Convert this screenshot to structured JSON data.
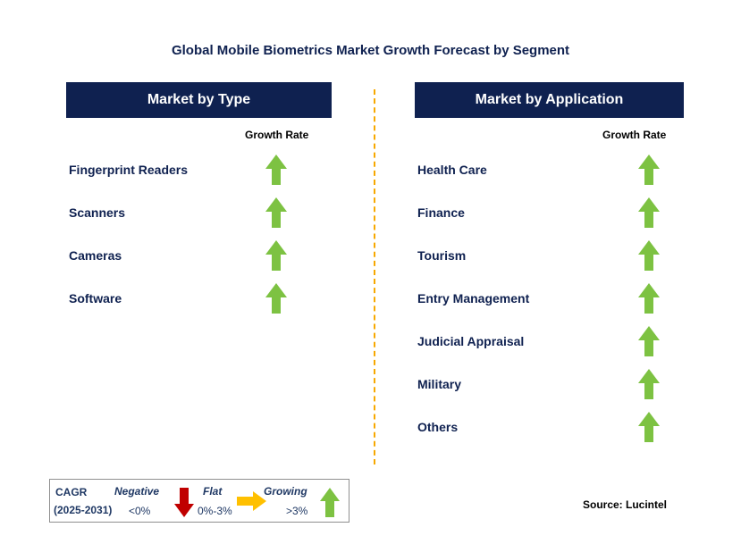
{
  "title": "Global Mobile Biometrics Market Growth Forecast by Segment",
  "left": {
    "header": "Market by Type",
    "growth_label": "Growth Rate",
    "items": [
      {
        "label": "Fingerprint Readers",
        "trend": "growing"
      },
      {
        "label": "Scanners",
        "trend": "growing"
      },
      {
        "label": "Cameras",
        "trend": "growing"
      },
      {
        "label": "Software",
        "trend": "growing"
      }
    ]
  },
  "right": {
    "header": "Market by Application",
    "growth_label": "Growth Rate",
    "items": [
      {
        "label": "Health Care",
        "trend": "growing"
      },
      {
        "label": "Finance",
        "trend": "growing"
      },
      {
        "label": "Tourism",
        "trend": "growing"
      },
      {
        "label": "Entry Management",
        "trend": "growing"
      },
      {
        "label": "Judicial Appraisal",
        "trend": "growing"
      },
      {
        "label": "Military",
        "trend": "growing"
      },
      {
        "label": "Others",
        "trend": "growing"
      }
    ]
  },
  "legend": {
    "cagr": "CAGR",
    "period": "(2025-2031)",
    "negative": "Negative",
    "negative_value": "<0%",
    "flat": "Flat",
    "flat_value": "0%-3%",
    "growing": "Growing",
    "growing_value": ">3%"
  },
  "source": "Source: Lucintel",
  "colors": {
    "navy": "#0f2150",
    "growing": "#7dc242",
    "negative": "#c00000",
    "flat": "#ffc000",
    "divider": "#f7a800"
  }
}
